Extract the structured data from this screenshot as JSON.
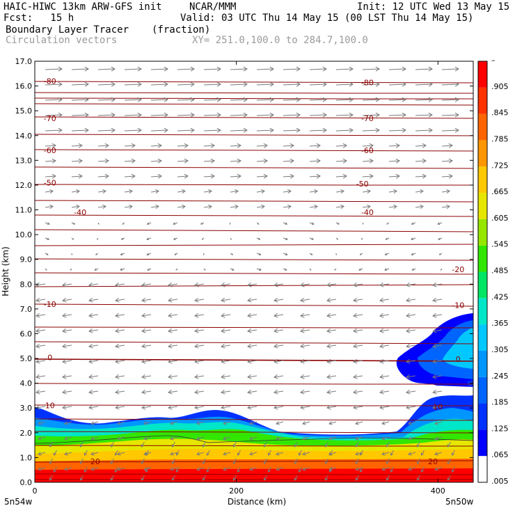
{
  "header": {
    "model": "HAIC-HIWC 13km ARW-GFS init",
    "org": "NCAR/MMM",
    "init": "Init: 12 UTC Wed 13 May 15",
    "fcst": "Fcst:   15 h",
    "valid": "Valid: 03 UTC Thu 14 May 15 (00 LST Thu 14 May 15)",
    "field": "Boundary Layer Tracer",
    "field_units": "(fraction)",
    "vectors": "Circulation vectors",
    "xsec": "XY= 251.0,100.0 to 284.7,100.0"
  },
  "chart_data": {
    "type": "heatmap",
    "xlabel": "Distance (km)",
    "ylabel": "Height (km)",
    "xlim": [
      0,
      435
    ],
    "ylim": [
      0,
      17
    ],
    "x_ticks": [
      0,
      200,
      400
    ],
    "y_ticks": [
      "0.0",
      "1.0",
      "2.0",
      "3.0",
      "4.0",
      "5.0",
      "6.0",
      "7.0",
      "8.0",
      "9.0",
      "10.0",
      "11.0",
      "12.0",
      "13.0",
      "14.0",
      "15.0",
      "16.0",
      "17.0"
    ],
    "x_endpoints": {
      "left": "5n54w",
      "right": "5n50w"
    },
    "colorbar": {
      "labels": [
        ".005",
        ".065",
        ".125",
        ".185",
        ".245",
        ".305",
        ".365",
        ".425",
        ".485",
        ".545",
        ".605",
        ".665",
        ".725",
        ".785",
        ".845",
        ".905",
        "–"
      ],
      "colors": [
        "#ffffff",
        "#0000ff",
        "#0032ff",
        "#0064ff",
        "#0096ff",
        "#00c8ff",
        "#00e6c8",
        "#00e664",
        "#32e600",
        "#96e600",
        "#e6e600",
        "#ffc800",
        "#ff9600",
        "#ff6400",
        "#ff3200",
        "#ff0000"
      ]
    },
    "contour_labels": [
      {
        "text": "-80",
        "x": 15,
        "y": 16.2
      },
      {
        "text": "-80",
        "x": 330,
        "y": 16.15
      },
      {
        "text": "-70",
        "x": 15,
        "y": 14.7
      },
      {
        "text": "-70",
        "x": 330,
        "y": 14.7
      },
      {
        "text": "-60",
        "x": 15,
        "y": 13.4
      },
      {
        "text": "-60",
        "x": 330,
        "y": 13.4
      },
      {
        "text": "-50",
        "x": 15,
        "y": 12.1
      },
      {
        "text": "-50",
        "x": 325,
        "y": 12.05
      },
      {
        "text": "-40",
        "x": 45,
        "y": 10.9
      },
      {
        "text": "-40",
        "x": 330,
        "y": 10.9
      },
      {
        "text": "-20",
        "x": 420,
        "y": 8.6
      },
      {
        "text": "-10",
        "x": 15,
        "y": 7.2
      },
      {
        "text": "-10",
        "x": 420,
        "y": 7.15
      },
      {
        "text": "0",
        "x": 15,
        "y": 5.05
      },
      {
        "text": "0",
        "x": 420,
        "y": 4.98
      },
      {
        "text": "10",
        "x": 15,
        "y": 3.1
      },
      {
        "text": "10",
        "x": 400,
        "y": 3.05
      },
      {
        "text": "20",
        "x": 60,
        "y": 0.85
      },
      {
        "text": "20",
        "x": 395,
        "y": 0.85
      }
    ]
  }
}
